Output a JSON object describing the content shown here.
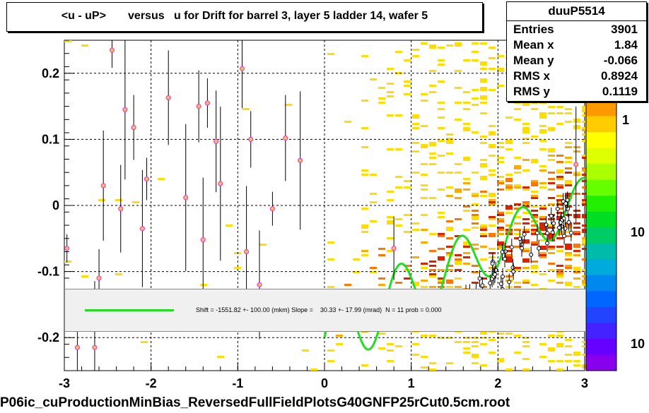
{
  "title": "<u - uP>       versus   u for Drift for barrel 3, layer 5 ladder 14, wafer 5",
  "stats": {
    "name": "duuP5514",
    "rows": [
      {
        "key": "Entries",
        "value": "3901"
      },
      {
        "key": "Mean x",
        "value": "1.84"
      },
      {
        "key": "Mean y",
        "value": "-0.066"
      },
      {
        "key": "RMS x",
        "value": "0.8924"
      },
      {
        "key": "RMS y",
        "value": "0.1119"
      }
    ]
  },
  "fit_text": "Shift = -1551.82 +- 100.00 (mkm) Slope =    30.33 +- 17.99 (mrad)  N = 11 prob = 0.000",
  "bottom_label": "P06ic_cuProductionMinBias_ReversedFullFieldPlotsG40GNFP25rCut0.5cm.root",
  "colors": {
    "fit": "#22dd22",
    "profile": "#dd44dd"
  },
  "chart_data": {
    "type": "heatmap",
    "title": "<u - uP>       versus   u for Drift for barrel 3, layer 5 ladder 14, wafer 5",
    "xlim": [
      -3,
      3
    ],
    "ylim": [
      -0.25,
      0.25
    ],
    "x_ticks": [
      "-3",
      "-2",
      "-1",
      "0",
      "1",
      "2",
      "3"
    ],
    "y_ticks": [
      "-0.2",
      "-0.1",
      "0",
      "0.1",
      "0.2"
    ],
    "grid": true,
    "colorbar_labels": [
      "1",
      "10",
      "10"
    ],
    "profile_points": [
      {
        "x": -2.97,
        "y": -0.065
      },
      {
        "x": -2.85,
        "y": -0.215
      },
      {
        "x": -2.65,
        "y": -0.215
      },
      {
        "x": -2.6,
        "y": -0.11
      },
      {
        "x": -2.55,
        "y": 0.03
      },
      {
        "x": -2.45,
        "y": 0.235
      },
      {
        "x": -2.35,
        "y": -0.005
      },
      {
        "x": -2.3,
        "y": 0.145
      },
      {
        "x": -2.2,
        "y": 0.118
      },
      {
        "x": -2.1,
        "y": -0.035
      },
      {
        "x": -2.05,
        "y": 0.04
      },
      {
        "x": -1.8,
        "y": 0.163
      },
      {
        "x": -1.6,
        "y": 0.012
      },
      {
        "x": -1.45,
        "y": 0.15
      },
      {
        "x": -1.4,
        "y": -0.052
      },
      {
        "x": -1.35,
        "y": 0.155
      },
      {
        "x": -1.25,
        "y": 0.097
      },
      {
        "x": -1.2,
        "y": 0.033
      },
      {
        "x": -0.95,
        "y": 0.207
      },
      {
        "x": -0.9,
        "y": -0.07
      },
      {
        "x": -0.85,
        "y": 0.1
      },
      {
        "x": -0.75,
        "y": -0.12
      },
      {
        "x": -0.6,
        "y": -0.005
      },
      {
        "x": -0.45,
        "y": 0.102
      },
      {
        "x": -0.28,
        "y": 0.068
      },
      {
        "x": 0.8,
        "y": -0.065
      },
      {
        "x": 2.9,
        "y": 0.062
      }
    ],
    "fit": {
      "shift_mkm": -1551.82,
      "shift_err": 100.0,
      "slope_mrad": 30.33,
      "slope_err": 17.99,
      "N": 11,
      "prob": 0.0
    }
  }
}
